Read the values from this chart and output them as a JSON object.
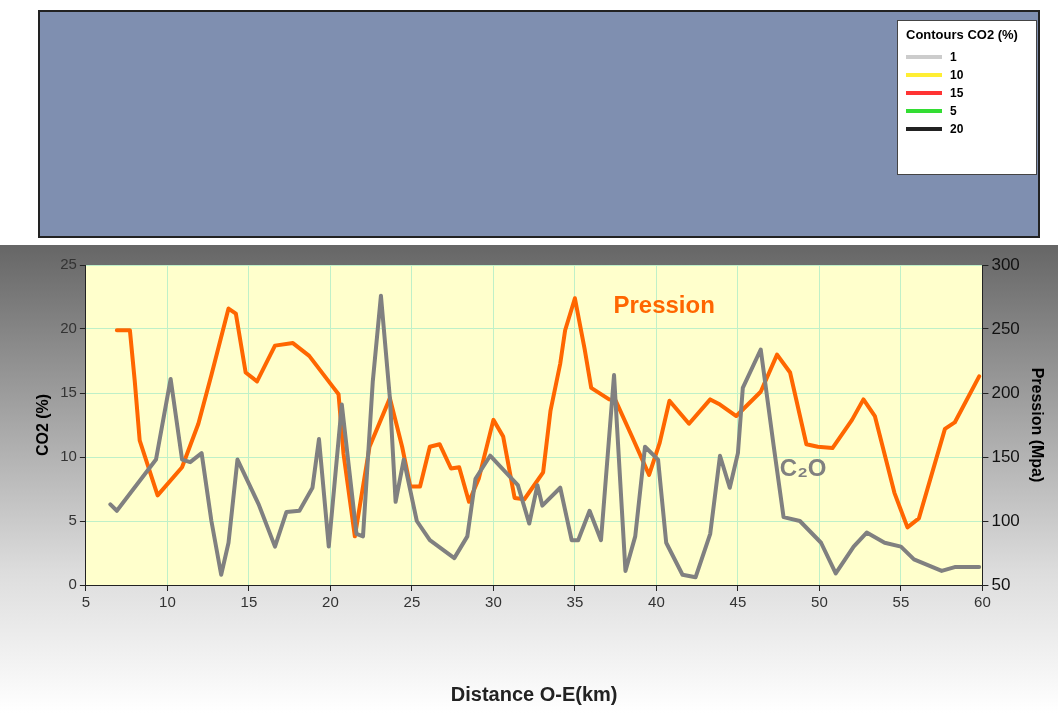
{
  "chart_data": {
    "type": "line",
    "xlabel": "Distance O-E(km)",
    "ylabel": "CO2 (%)",
    "y2label": "Pression (Mpa)",
    "xlim": [
      5,
      60
    ],
    "xticks": [
      5,
      10,
      15,
      20,
      25,
      30,
      35,
      40,
      45,
      50,
      55,
      60
    ],
    "ylim": [
      0,
      25
    ],
    "yticks": [
      0,
      5,
      10,
      15,
      20,
      25
    ],
    "y2lim": [
      50,
      300
    ],
    "y2ticks": [
      50,
      100,
      150,
      200,
      250,
      300
    ],
    "grid": true,
    "legend": false,
    "marker": "none",
    "line_style": "solid",
    "annotations": [
      "Contours CO2 (%)",
      "1",
      "10",
      "15",
      "5",
      "20"
    ],
    "series": [
      {
        "name": "C₂O",
        "color": "#808080",
        "x": [
          6.5,
          6.9,
          8.4,
          9.3,
          10.2,
          10.9,
          11.4,
          12.1,
          12.7,
          13.3,
          13.75,
          14.3,
          15.6,
          16.6,
          17.3,
          18.1,
          18.9,
          19.3,
          19.9,
          20.7,
          21.6,
          22.0,
          22.6,
          23.1,
          23.65,
          24.0,
          24.5,
          25.3,
          26.1,
          27.6,
          28.4,
          28.9,
          29.8,
          31.5,
          32.2,
          32.7,
          33.0,
          34.1,
          34.8,
          35.2,
          35.9,
          36.6,
          37.4,
          38.1,
          38.7,
          39.3,
          40.1,
          40.6,
          41.6,
          42.4,
          43.3,
          43.9,
          44.5,
          45.0,
          45.3,
          46.4,
          47.2,
          47.8,
          48.8,
          50.1,
          51.0,
          52.1,
          52.9,
          54.0,
          55.0,
          55.8,
          57.5,
          58.3,
          59.8
        ],
        "values": [
          6.3,
          5.8,
          8.3,
          9.8,
          16.1,
          9.8,
          9.6,
          10.3,
          5.0,
          0.8,
          3.3,
          9.8,
          6.3,
          3.0,
          5.7,
          5.8,
          7.6,
          11.4,
          3.0,
          14.1,
          4.0,
          3.8,
          15.9,
          22.6,
          14.6,
          6.5,
          9.8,
          5.0,
          3.5,
          2.1,
          3.8,
          8.3,
          10.1,
          7.8,
          4.8,
          7.8,
          6.2,
          7.6,
          3.5,
          3.5,
          5.8,
          3.5,
          16.4,
          1.1,
          3.8,
          10.8,
          9.8,
          3.3,
          0.8,
          0.6,
          4.0,
          10.1,
          7.6,
          10.3,
          15.4,
          18.4,
          10.8,
          5.3,
          5.0,
          3.3,
          0.9,
          3.0,
          4.1,
          3.3,
          3.0,
          2.0,
          1.1,
          1.4,
          1.4
        ]
      },
      {
        "name": "Pression",
        "color": "#ff6600",
        "axis": "y2",
        "x": [
          6.9,
          7.7,
          8.0,
          8.3,
          9.4,
          10.9,
          11.9,
          12.7,
          13.75,
          14.2,
          14.8,
          15.5,
          16.6,
          17.7,
          18.7,
          20.2,
          20.5,
          20.8,
          21.5,
          22.4,
          23.65,
          24.4,
          24.9,
          25.5,
          26.1,
          26.7,
          27.4,
          27.9,
          28.5,
          29.1,
          30.0,
          30.6,
          31.3,
          31.9,
          33.05,
          33.5,
          34.1,
          34.4,
          35.0,
          35.6,
          36.0,
          37.1,
          37.5,
          38.5,
          39.55,
          40.2,
          40.8,
          42.0,
          43.3,
          43.9,
          44.9,
          46.4,
          47.4,
          48.2,
          49.2,
          49.9,
          50.8,
          52.0,
          52.7,
          53.4,
          54.6,
          55.4,
          56.1,
          57.7,
          58.3,
          59.8
        ],
        "values": [
          249,
          249,
          209,
          163,
          120,
          142,
          176,
          214,
          266,
          262,
          216,
          209,
          237,
          239,
          229,
          204,
          199,
          153,
          88,
          158,
          196,
          158,
          127,
          127,
          158,
          160,
          141,
          142,
          115,
          133,
          179,
          166,
          118,
          117,
          138,
          186,
          223,
          249,
          274,
          234,
          204,
          195,
          194,
          166,
          136,
          161,
          194,
          176,
          195,
          191,
          182,
          201,
          230,
          216,
          160,
          158,
          157,
          179,
          195,
          182,
          122,
          95,
          102,
          172,
          177,
          213
        ]
      }
    ]
  }
}
